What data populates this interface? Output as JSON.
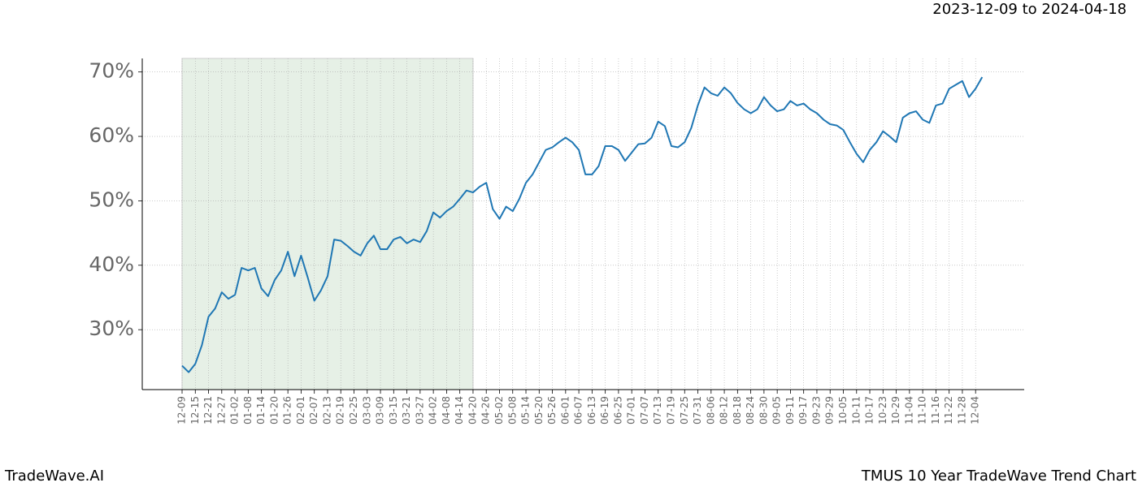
{
  "chart_data": {
    "type": "line",
    "range_text": "2023-12-09 to 2024-04-18",
    "brand": "TradeWave.AI",
    "title": "TMUS 10 Year TradeWave Trend Chart",
    "categories": [
      "12-09",
      null,
      "12-15",
      null,
      "12-21",
      null,
      "12-27",
      null,
      "01-02",
      null,
      "01-08",
      null,
      "01-14",
      null,
      "01-20",
      null,
      "01-26",
      null,
      "02-01",
      null,
      "02-07",
      null,
      "02-13",
      null,
      "02-19",
      null,
      "02-25",
      null,
      "03-03",
      null,
      "03-09",
      null,
      "03-15",
      null,
      "03-21",
      null,
      "03-27",
      null,
      "04-02",
      null,
      "04-08",
      null,
      "04-14",
      null,
      "04-20",
      null,
      "04-26",
      null,
      "05-02",
      null,
      "05-08",
      null,
      "05-14",
      null,
      "05-20",
      null,
      "05-26",
      null,
      "06-01",
      null,
      "06-07",
      null,
      "06-13",
      null,
      "06-19",
      null,
      "06-25",
      null,
      "07-01",
      null,
      "07-07",
      null,
      "07-13",
      null,
      "07-19",
      null,
      "07-25",
      null,
      "07-31",
      null,
      "08-06",
      null,
      "08-12",
      null,
      "08-18",
      null,
      "08-24",
      null,
      "08-30",
      null,
      "09-05",
      null,
      "09-11",
      null,
      "09-17",
      null,
      "09-23",
      null,
      "09-29",
      null,
      "10-05",
      null,
      "10-11",
      null,
      "10-17",
      null,
      "10-23",
      null,
      "10-29",
      null,
      "11-04",
      null,
      "11-10",
      null,
      "11-16",
      null,
      "11-22",
      null,
      "11-28",
      null,
      "12-04",
      null
    ],
    "series": [
      {
        "color": "#1f77b4",
        "values": [
          24.4,
          23.4,
          24.7,
          27.6,
          32.0,
          33.3,
          35.8,
          34.8,
          35.4,
          39.6,
          39.2,
          39.6,
          36.4,
          35.2,
          37.7,
          39.2,
          42.1,
          38.3,
          41.5,
          38.1,
          34.5,
          36.1,
          38.3,
          44.0,
          43.8,
          43.0,
          42.1,
          41.5,
          43.4,
          44.6,
          42.5,
          42.5,
          44.0,
          44.4,
          43.4,
          44.0,
          43.6,
          45.3,
          48.2,
          47.4,
          48.4,
          49.1,
          50.3,
          51.6,
          51.3,
          52.2,
          52.8,
          48.7,
          47.2,
          49.1,
          48.4,
          50.3,
          52.8,
          54.1,
          56.0,
          57.9,
          58.3,
          59.1,
          59.8,
          59.1,
          57.9,
          54.1,
          54.1,
          55.4,
          58.5,
          58.5,
          57.9,
          56.2,
          57.5,
          58.8,
          58.9,
          59.8,
          62.3,
          61.6,
          58.5,
          58.3,
          59.1,
          61.3,
          64.8,
          67.6,
          66.7,
          66.3,
          67.6,
          66.7,
          65.2,
          64.2,
          63.6,
          64.2,
          66.1,
          64.8,
          63.9,
          64.2,
          65.5,
          64.8,
          65.1,
          64.2,
          63.6,
          62.6,
          61.9,
          61.7,
          61.0,
          59.1,
          57.3,
          56.0,
          57.9,
          59.1,
          60.8,
          60.0,
          59.1,
          62.9,
          63.6,
          63.9,
          62.6,
          62.1,
          64.8,
          65.1,
          67.4,
          68.0,
          68.6,
          66.1,
          67.4,
          69.2
        ]
      }
    ],
    "ylim": [
      20.7,
      72.1
    ],
    "yticks": [
      {
        "value": 30,
        "label": "30%"
      },
      {
        "value": 40,
        "label": "40%"
      },
      {
        "value": 50,
        "label": "50%"
      },
      {
        "value": 60,
        "label": "60%"
      },
      {
        "value": 70,
        "label": "70%"
      }
    ],
    "grid": true
  }
}
